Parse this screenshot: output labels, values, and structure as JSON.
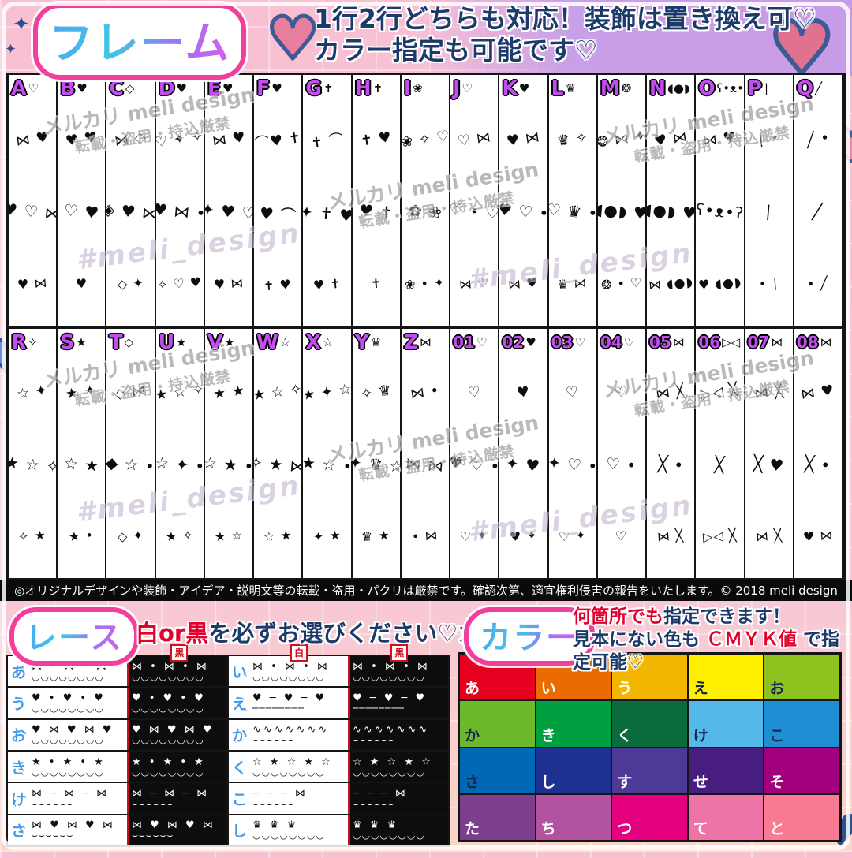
{
  "header": {
    "logo": "フレーム",
    "heart_icon": "♥",
    "sparkle_icon": "✦",
    "line1": "1行2行どちらも対応！装飾は置き換え可♡",
    "line2": "カラー指定も可能です♡"
  },
  "frame_grid": {
    "watermark": {
      "line1": "メルカリ meli design",
      "line2": "転載・盗用・持込厳禁",
      "signature": "#meli_design"
    },
    "rows": [
      {
        "cells": [
          {
            "label": "A",
            "tag": "♡",
            "clusters": [
              "⋈ ♥",
              "♥ ♡ ⋈",
              "♥ ⋈"
            ]
          },
          {
            "label": "B",
            "tag": "♥",
            "clusters": [
              "♥ ♥",
              "♡ ♥",
              "♥"
            ]
          },
          {
            "label": "C",
            "tag": "◇",
            "clusters": [
              "⋈ ◇",
              "◈ ♥ ⋈",
              "◇ ✦"
            ]
          },
          {
            "label": "D",
            "tag": "♥",
            "clusters": [
              "♡ ✦ ✧",
              "♥ ⋈ •",
              "✧ ♡ ♥"
            ]
          },
          {
            "label": "E",
            "tag": "♥",
            "clusters": [
              "⋈ ♥",
              "✦ ♥ ♡",
              "♥ ⋈"
            ]
          },
          {
            "label": "F",
            "tag": "♥",
            "clusters": [
              "⌒♥ ✝",
              "♥ ⌒",
              "✝ ♥"
            ]
          },
          {
            "label": "G",
            "tag": "✝",
            "clusters": [
              "✝ ⌒",
              "✦ ✝ ♥",
              "♥ ✝"
            ]
          },
          {
            "label": "H",
            "tag": "✝",
            "clusters": [
              "✝ ♥",
              "♥ ✝",
              "✝"
            ]
          },
          {
            "label": "I",
            "tag": "❀",
            "clusters": [
              "❀ ✧ ♡",
              "✿ ❀",
              "❀ • ✦"
            ]
          },
          {
            "label": "J",
            "tag": "♡",
            "clusters": [
              "♡ ⋈",
              "♡ • ♡",
              "⋈ ♡"
            ]
          },
          {
            "label": "K",
            "tag": "♥",
            "clusters": [
              "♥ ⋈",
              "♥ ♡ •",
              "⋈ ♥"
            ]
          },
          {
            "label": "L",
            "tag": "♛",
            "clusters": [
              "♛ ✧",
              "♡ ♛ •",
              "♛ ⋈"
            ]
          },
          {
            "label": "M",
            "tag": "❂",
            "clusters": [
              "❂ ⋈ ✦",
              "◖●◗ ♥",
              "❂ • ♡"
            ]
          },
          {
            "label": "N",
            "tag": "◖●◗",
            "clusters": [
              "♥ ⋈",
              "◖●◗ ♥",
              "⋈ ◖●◗"
            ]
          },
          {
            "label": "O",
            "tag": "ʕ•ᴥ•ʔ",
            "clusters": [
              "⋈ ♥",
              "ʕ•ᴥ•ʔ",
              "♥ ◖●◗"
            ]
          },
          {
            "label": "P",
            "tag": "∣",
            "clusters": [
              "∣ •",
              "∣",
              "• ∣"
            ]
          },
          {
            "label": "Q",
            "tag": "╱",
            "clusters": [
              "╱ •",
              "╱",
              "• ╱"
            ]
          }
        ]
      },
      {
        "cells": [
          {
            "label": "R",
            "tag": "✧",
            "clusters": [
              "☆ ✦",
              "★ ☆ ✧",
              "✧ ★"
            ]
          },
          {
            "label": "S",
            "tag": "★",
            "clusters": [
              "★ ✦",
              "☆ ★",
              "★ •"
            ]
          },
          {
            "label": "T",
            "tag": "◇",
            "clusters": [
              "◇ ⋈",
              "◆ ☆ •",
              "◇ ✦"
            ]
          },
          {
            "label": "U",
            "tag": "★",
            "clusters": [
              "★ ☆ ✧",
              "☆ ✦ •",
              "★ ✧"
            ]
          },
          {
            "label": "V",
            "tag": "★",
            "clusters": [
              "★ ★",
              "☆ ★ •",
              "★ ☆"
            ]
          },
          {
            "label": "W",
            "tag": "☆",
            "clusters": [
              "★ ☆ ✧",
              "✧ ★ ⋈",
              "☆ ★"
            ]
          },
          {
            "label": "X",
            "tag": "☆",
            "clusters": [
              "★ ✦ ☆",
              "★ ☆ •",
              "✦ ★"
            ]
          },
          {
            "label": "Y",
            "tag": "♛",
            "clusters": [
              "✧ ♛",
              "✦ ♛ ☆",
              "♛ ★"
            ]
          },
          {
            "label": "Z",
            "tag": "⋈",
            "clusters": [
              "⋈ •",
              "⋈ ⋈",
              "• ⋈"
            ]
          },
          {
            "label": "01",
            "tag": "♡",
            "clusters": [
              "♡",
              "♥ ♡ •",
              "♡ ✦"
            ]
          },
          {
            "label": "02",
            "tag": "♥",
            "clusters": [
              "♥",
              "✦ ♥",
              "♥ ✦"
            ]
          },
          {
            "label": "03",
            "tag": "♡",
            "clusters": [
              "♡",
              "✦ ♡ •",
              "♡ ✦"
            ]
          },
          {
            "label": "04",
            "tag": "♡",
            "clusters": [
              "♡",
              "♡ •",
              "♡"
            ]
          },
          {
            "label": "05",
            "tag": "⋈",
            "clusters": [
              "⋈ ╳",
              "╳ •",
              "⋈ ╳"
            ]
          },
          {
            "label": "06",
            "tag": "▷◁",
            "clusters": [
              "▷◁ ╳",
              "╳",
              "▷◁ ╳"
            ]
          },
          {
            "label": "07",
            "tag": "⋈",
            "clusters": [
              "⋈ ╳",
              "╳ ♥",
              "⋈ ╳"
            ]
          },
          {
            "label": "08",
            "tag": "⋈",
            "clusters": [
              "⋈ ♥",
              "╳ •",
              "♥ ⋈"
            ]
          }
        ]
      }
    ]
  },
  "copyright": "◎オリジナルデザインや装飾・アイデア・説明文等の転載・盗用・パクリは厳禁です。確認次第、適宜権利侵害の報告をいたします。© 2018 meli design",
  "lace": {
    "logo": "レース",
    "desc_red": "白or黒",
    "desc_rest": "を必ずお選びください♡カラー可♡",
    "tag_white": "白",
    "tag_black": "黒",
    "rows": [
      [
        {
          "label": "あ",
          "motifs": "⋈ • ⋈ • ⋈",
          "edge": "◡◡◡◡◡◡◡◡"
        },
        {
          "label": "い",
          "motifs": "⋈ • ⋈ • ⋈",
          "edge": "◡◡◡◡◡◡◡◡"
        }
      ],
      [
        {
          "label": "う",
          "motifs": "♥ • ♥ • ♥",
          "edge": "◡◡◡◡◡◡◡◡"
        },
        {
          "label": "え",
          "motifs": "♥ ─ ♥ ─ ♥",
          "edge": "────────"
        }
      ],
      [
        {
          "label": "お",
          "motifs": "♥ ⋈ ♥ ⋈ ♥",
          "edge": "◡◡◡◡◡◡◡◡"
        },
        {
          "label": "か",
          "motifs": "∿∿∿∿∿∿∿",
          "edge": "⌣⌣⌣⌣⌣⌣"
        }
      ],
      [
        {
          "label": "き",
          "motifs": "★ • ★ • ★",
          "edge": "◡◡◡◡◡◡◡◡"
        },
        {
          "label": "く",
          "motifs": "☆ ★ ☆ ★ ☆",
          "edge": "◡◡◡◡◡◡◡◡"
        }
      ],
      [
        {
          "label": "け",
          "motifs": "⋈ ─ ⋈ ─ ⋈",
          "edge": "⌣⌣⌣⌣⌣⌣"
        },
        {
          "label": "こ",
          "motifs": "─ ─ ─ ⋈",
          "edge": "⌣⌣⌣⌣⌣⌣"
        }
      ],
      [
        {
          "label": "さ",
          "motifs": "⋈ ♥ ⋈ ♥ ⋈",
          "edge": "⌣⌣⌣⌣⌣⌣"
        },
        {
          "label": "し",
          "motifs": "♛ ♛ ♛",
          "edge": "◡◡◡◡◡◡◡◡"
        }
      ]
    ]
  },
  "color": {
    "logo": "カラー",
    "desc1_red": "何箇所でも",
    "desc1_rest": "指定できます！",
    "desc2_pre": "見本にない色も",
    "desc2_red": "ＣＭＹＫ値",
    "desc2_post": "で指定可能♡",
    "rows": [
      [
        {
          "label": "あ",
          "hex": "#e60020",
          "dark": false
        },
        {
          "label": "い",
          "hex": "#ea6c00",
          "dark": false
        },
        {
          "label": "う",
          "hex": "#f2b500",
          "dark": false
        },
        {
          "label": "え",
          "hex": "#fff000",
          "dark": true
        },
        {
          "label": "お",
          "hex": "#8ec31f",
          "dark": true
        }
      ],
      [
        {
          "label": "か",
          "hex": "#6eb92b",
          "dark": true
        },
        {
          "label": "き",
          "hex": "#00a040",
          "dark": false
        },
        {
          "label": "く",
          "hex": "#0a6b3c",
          "dark": false
        },
        {
          "label": "け",
          "hex": "#54b8e8",
          "dark": true
        },
        {
          "label": "こ",
          "hex": "#1f8ed3",
          "dark": true
        }
      ],
      [
        {
          "label": "さ",
          "hex": "#0068b4",
          "dark": true
        },
        {
          "label": "し",
          "hex": "#1d3190",
          "dark": false
        },
        {
          "label": "す",
          "hex": "#4e3a96",
          "dark": false
        },
        {
          "label": "せ",
          "hex": "#471e80",
          "dark": false
        },
        {
          "label": "そ",
          "hex": "#a2007d",
          "dark": false
        }
      ],
      [
        {
          "label": "た",
          "hex": "#7d3f8d",
          "dark": false
        },
        {
          "label": "ち",
          "hex": "#b1539e",
          "dark": false
        },
        {
          "label": "つ",
          "hex": "#e4007f",
          "dark": false
        },
        {
          "label": "て",
          "hex": "#ee74a8",
          "dark": false
        },
        {
          "label": "と",
          "hex": "#f97b93",
          "dark": false
        }
      ]
    ]
  }
}
